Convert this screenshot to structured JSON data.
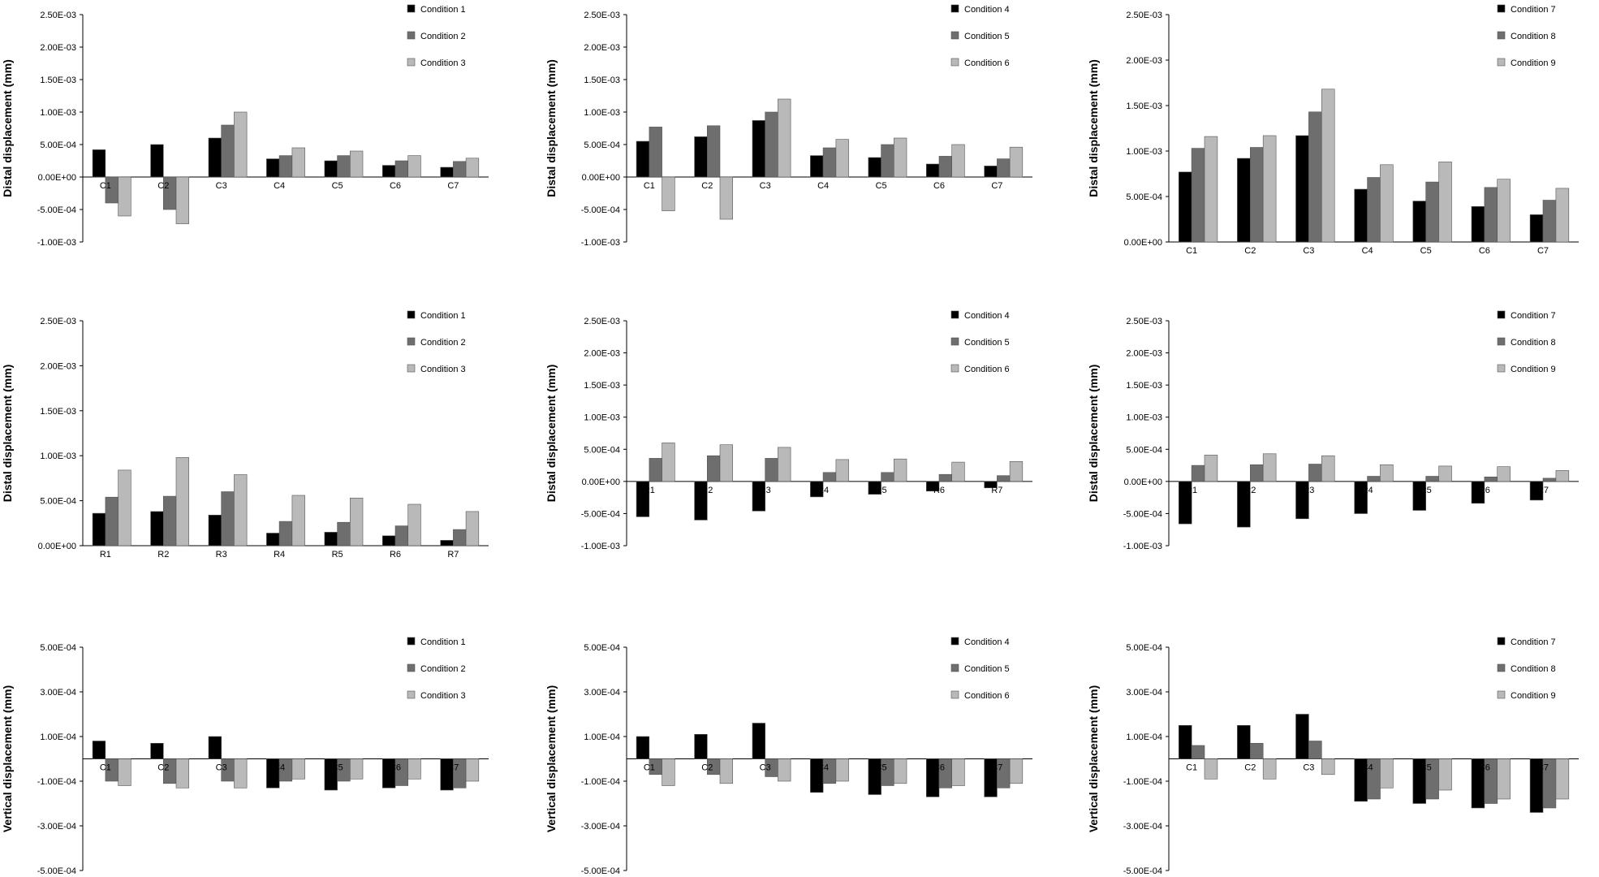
{
  "colors": {
    "series1": "#000000",
    "series2": "#6e6e6e",
    "series3": "#b9b9b9",
    "bar_stroke": "#555555",
    "axis": "#000000"
  },
  "chart_data": [
    {
      "type": "bar",
      "categories": [
        "C1",
        "C2",
        "C3",
        "C4",
        "C5",
        "C6",
        "C7"
      ],
      "series": [
        {
          "name": "Condition 1",
          "values": [
            0.00042,
            0.0005,
            0.0006,
            0.00028,
            0.00025,
            0.00018,
            0.00015
          ]
        },
        {
          "name": "Condition 2",
          "values": [
            -0.0004,
            -0.0005,
            0.0008,
            0.00033,
            0.00033,
            0.00025,
            0.00024
          ]
        },
        {
          "name": "Condition 3",
          "values": [
            -0.0006,
            -0.00072,
            0.001,
            0.00045,
            0.0004,
            0.00033,
            0.00029
          ]
        }
      ],
      "ylabel": "Distal displacement (mm)",
      "ylim": [
        -0.001,
        0.0025
      ],
      "yticks": [
        "2.50E-03",
        "2.00E-03",
        "1.50E-03",
        "1.00E-03",
        "5.00E-04",
        "0.00E+00",
        "-5.00E-04",
        "-1.00E-03"
      ],
      "grid": false,
      "legend": "top-right"
    },
    {
      "type": "bar",
      "categories": [
        "C1",
        "C2",
        "C3",
        "C4",
        "C5",
        "C6",
        "C7"
      ],
      "series": [
        {
          "name": "Condition 4",
          "values": [
            0.00055,
            0.00062,
            0.00087,
            0.00033,
            0.0003,
            0.0002,
            0.00017
          ]
        },
        {
          "name": "Condition 5",
          "values": [
            0.00077,
            0.00079,
            0.001,
            0.00045,
            0.0005,
            0.00032,
            0.00028
          ]
        },
        {
          "name": "Condition 6",
          "values": [
            -0.00052,
            -0.00065,
            0.0012,
            0.00058,
            0.0006,
            0.0005,
            0.00046
          ]
        }
      ],
      "ylabel": "Distal displacement (mm)",
      "ylim": [
        -0.001,
        0.0025
      ],
      "yticks": [
        "2.50E-03",
        "2.00E-03",
        "1.50E-03",
        "1.00E-03",
        "5.00E-04",
        "0.00E+00",
        "-5.00E-04",
        "-1.00E-03"
      ],
      "grid": false,
      "legend": "top-right"
    },
    {
      "type": "bar",
      "categories": [
        "C1",
        "C2",
        "C3",
        "C4",
        "C5",
        "C6",
        "C7"
      ],
      "series": [
        {
          "name": "Condition 7",
          "values": [
            0.00077,
            0.00092,
            0.00117,
            0.00058,
            0.00045,
            0.00039,
            0.0003
          ]
        },
        {
          "name": "Condition 8",
          "values": [
            0.00103,
            0.00104,
            0.00143,
            0.00071,
            0.00066,
            0.0006,
            0.00046
          ]
        },
        {
          "name": "Condition 9",
          "values": [
            0.00116,
            0.00117,
            0.00168,
            0.00085,
            0.00088,
            0.00069,
            0.00059
          ]
        }
      ],
      "ylabel": "Distal displacement (mm)",
      "ylim": [
        0,
        0.0025
      ],
      "yticks": [
        "2.50E-03",
        "2.00E-03",
        "1.50E-03",
        "1.00E-03",
        "5.00E-04",
        "0.00E+00"
      ],
      "grid": false,
      "legend": "top-right"
    },
    {
      "type": "bar",
      "categories": [
        "R1",
        "R2",
        "R3",
        "R4",
        "R5",
        "R6",
        "R7"
      ],
      "series": [
        {
          "name": "Condition 1",
          "values": [
            0.00036,
            0.00038,
            0.00034,
            0.00014,
            0.00015,
            0.00011,
            6e-05
          ]
        },
        {
          "name": "Condition 2",
          "values": [
            0.00054,
            0.00055,
            0.0006,
            0.00027,
            0.00026,
            0.00022,
            0.00018
          ]
        },
        {
          "name": "Condition 3",
          "values": [
            0.00084,
            0.00098,
            0.00079,
            0.00056,
            0.00053,
            0.00046,
            0.00038
          ]
        }
      ],
      "ylabel": "Distal displacement (mm)",
      "ylim": [
        0,
        0.0025
      ],
      "yticks": [
        "2.50E-03",
        "2.00E-03",
        "1.50E-03",
        "1.00E-03",
        "5.00E-04",
        "0.00E+00"
      ],
      "grid": false,
      "legend": "top-right"
    },
    {
      "type": "bar",
      "categories": [
        "R1",
        "R2",
        "R3",
        "R4",
        "R5",
        "R6",
        "R7"
      ],
      "series": [
        {
          "name": "Condition 4",
          "values": [
            -0.00055,
            -0.0006,
            -0.00046,
            -0.00024,
            -0.0002,
            -0.00015,
            -0.0001
          ]
        },
        {
          "name": "Condition 5",
          "values": [
            0.00036,
            0.0004,
            0.00036,
            0.00014,
            0.00014,
            0.00011,
            9e-05
          ]
        },
        {
          "name": "Condition 6",
          "values": [
            0.0006,
            0.00057,
            0.00053,
            0.00034,
            0.00035,
            0.0003,
            0.00031
          ]
        }
      ],
      "ylabel": "Distal displacement (mm)",
      "ylim": [
        -0.001,
        0.0025
      ],
      "yticks": [
        "2.50E-03",
        "2.00E-03",
        "1.50E-03",
        "1.00E-03",
        "5.00E-04",
        "0.00E+00",
        "-5.00E-04",
        "-1.00E-03"
      ],
      "grid": false,
      "legend": "top-right"
    },
    {
      "type": "bar",
      "categories": [
        "R1",
        "R2",
        "R3",
        "R4",
        "R5",
        "R6",
        "R7"
      ],
      "series": [
        {
          "name": "Condition 7",
          "values": [
            -0.00066,
            -0.00071,
            -0.00058,
            -0.0005,
            -0.00045,
            -0.00034,
            -0.00029
          ]
        },
        {
          "name": "Condition 8",
          "values": [
            0.00025,
            0.00026,
            0.00027,
            8e-05,
            8e-05,
            7e-05,
            5e-05
          ]
        },
        {
          "name": "Condition 9",
          "values": [
            0.00041,
            0.00043,
            0.0004,
            0.00026,
            0.00024,
            0.00023,
            0.00017
          ]
        }
      ],
      "ylabel": "Distal displacement (mm)",
      "ylim": [
        -0.001,
        0.0025
      ],
      "yticks": [
        "2.50E-03",
        "2.00E-03",
        "1.50E-03",
        "1.00E-03",
        "5.00E-04",
        "0.00E+00",
        "-5.00E-04",
        "-1.00E-03"
      ],
      "grid": false,
      "legend": "top-right"
    },
    {
      "type": "bar",
      "categories": [
        "C1",
        "C2",
        "C3",
        "C4",
        "C5",
        "C6",
        "C7"
      ],
      "series": [
        {
          "name": "Condition 1",
          "values": [
            8e-05,
            7e-05,
            0.0001,
            -0.00013,
            -0.00014,
            -0.00013,
            -0.00014
          ]
        },
        {
          "name": "Condition 2",
          "values": [
            -0.0001,
            -0.00011,
            -0.0001,
            -0.0001,
            -0.0001,
            -0.00012,
            -0.00013
          ]
        },
        {
          "name": "Condition 3",
          "values": [
            -0.00012,
            -0.00013,
            -0.00013,
            -9e-05,
            -9e-05,
            -9e-05,
            -0.0001
          ]
        }
      ],
      "ylabel": "Vertical displacement (mm)",
      "ylim": [
        -0.0005,
        0.0005
      ],
      "yticks": [
        "5.00E-04",
        "3.00E-04",
        "1.00E-04",
        "-1.00E-04",
        "-3.00E-04",
        "-5.00E-04"
      ],
      "grid": false,
      "legend": "top-right"
    },
    {
      "type": "bar",
      "categories": [
        "C1",
        "C2",
        "C3",
        "C4",
        "C5",
        "C6",
        "C7"
      ],
      "series": [
        {
          "name": "Condition 4",
          "values": [
            0.0001,
            0.00011,
            0.00016,
            -0.00015,
            -0.00016,
            -0.00017,
            -0.00017
          ]
        },
        {
          "name": "Condition 5",
          "values": [
            -7e-05,
            -7e-05,
            -8e-05,
            -0.00011,
            -0.00012,
            -0.00013,
            -0.00013
          ]
        },
        {
          "name": "Condition 6",
          "values": [
            -0.00012,
            -0.00011,
            -0.0001,
            -0.0001,
            -0.00011,
            -0.00012,
            -0.00011
          ]
        }
      ],
      "ylabel": "Vertical displacement (mm)",
      "ylim": [
        -0.0005,
        0.0005
      ],
      "yticks": [
        "5.00E-04",
        "3.00E-04",
        "1.00E-04",
        "-1.00E-04",
        "-3.00E-04",
        "-5.00E-04"
      ],
      "grid": false,
      "legend": "top-right"
    },
    {
      "type": "bar",
      "categories": [
        "C1",
        "C2",
        "C3",
        "C4",
        "C5",
        "C6",
        "C7"
      ],
      "series": [
        {
          "name": "Condition 7",
          "values": [
            0.00015,
            0.00015,
            0.0002,
            -0.00019,
            -0.0002,
            -0.00022,
            -0.00024
          ]
        },
        {
          "name": "Condition 8",
          "values": [
            6e-05,
            7e-05,
            8e-05,
            -0.00018,
            -0.00018,
            -0.0002,
            -0.00022
          ]
        },
        {
          "name": "Condition 9",
          "values": [
            -9e-05,
            -9e-05,
            -7e-05,
            -0.00013,
            -0.00014,
            -0.00018,
            -0.00018
          ]
        }
      ],
      "ylabel": "Vertical displacement (mm)",
      "ylim": [
        -0.0005,
        0.0005
      ],
      "yticks": [
        "5.00E-04",
        "3.00E-04",
        "1.00E-04",
        "-1.00E-04",
        "-3.00E-04",
        "-5.00E-04"
      ],
      "grid": false,
      "legend": "top-right"
    }
  ]
}
